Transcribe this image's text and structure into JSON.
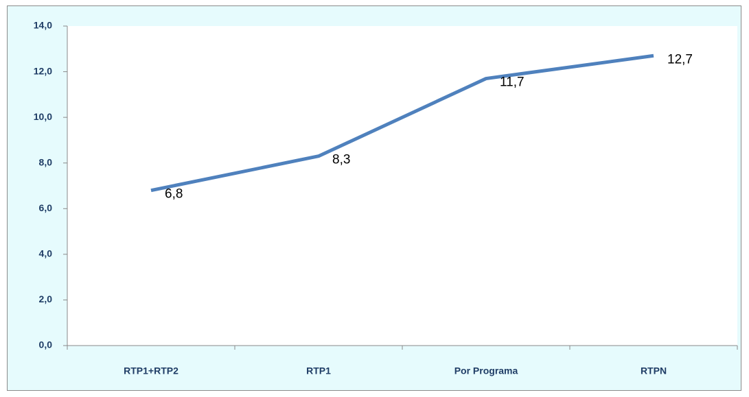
{
  "chart_data": {
    "type": "line",
    "categories": [
      "RTP1+RTP2",
      "RTP1",
      "Por Programa",
      "RTPN"
    ],
    "series": [
      {
        "values": [
          6.8,
          8.3,
          11.7,
          12.7
        ],
        "value_labels": [
          "6,8",
          "8,3",
          "11,7",
          "12,7"
        ],
        "color": "#4f81bd"
      }
    ],
    "ylim": [
      0,
      14
    ],
    "yticks": [
      {
        "value": 0,
        "label": "0,0"
      },
      {
        "value": 2,
        "label": "2,0"
      },
      {
        "value": 4,
        "label": "4,0"
      },
      {
        "value": 6,
        "label": "6,0"
      },
      {
        "value": 8,
        "label": "8,0"
      },
      {
        "value": 10,
        "label": "10,0"
      },
      {
        "value": 12,
        "label": "12,0"
      },
      {
        "value": 14,
        "label": "14,0"
      }
    ],
    "grid": false
  }
}
